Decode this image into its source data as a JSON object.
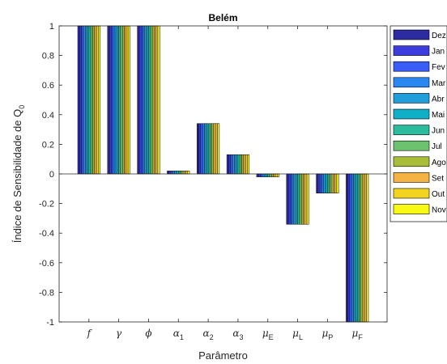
{
  "chart_data": {
    "type": "bar",
    "title": "Belém",
    "xlabel": "Parâmetro",
    "ylabel": "Índice de Sensibilidade de Q",
    "ylabel_sub": "0",
    "ylim": [
      -1,
      1
    ],
    "yticks": [
      "1",
      "0.8",
      "0.6",
      "0.4",
      "0.2",
      "0",
      "-0.2",
      "-0.4",
      "-0.6",
      "-0.8",
      "-1"
    ],
    "grid": false,
    "legend_position": "outside-right",
    "categories": [
      {
        "base": "f",
        "sub": ""
      },
      {
        "base": "γ",
        "sub": ""
      },
      {
        "base": "ϕ",
        "sub": ""
      },
      {
        "base": "α",
        "sub": "1"
      },
      {
        "base": "α",
        "sub": "2"
      },
      {
        "base": "α",
        "sub": "3"
      },
      {
        "base": "μ",
        "sub": "E"
      },
      {
        "base": "μ",
        "sub": "L"
      },
      {
        "base": "μ",
        "sub": "P"
      },
      {
        "base": "μ",
        "sub": "F"
      }
    ],
    "series": [
      {
        "name": "Dez",
        "color": "#2c2ca0",
        "values": [
          1,
          1,
          1,
          0.02,
          0.34,
          0.13,
          -0.02,
          -0.34,
          -0.13,
          -1
        ]
      },
      {
        "name": "Jan",
        "color": "#3d3ddf",
        "values": [
          1,
          1,
          1,
          0.02,
          0.34,
          0.13,
          -0.02,
          -0.34,
          -0.13,
          -1
        ]
      },
      {
        "name": "Fev",
        "color": "#3a5cf7",
        "values": [
          1,
          1,
          1,
          0.02,
          0.34,
          0.13,
          -0.02,
          -0.34,
          -0.13,
          -1
        ]
      },
      {
        "name": "Mar",
        "color": "#2b88f0",
        "values": [
          1,
          1,
          1,
          0.02,
          0.34,
          0.13,
          -0.02,
          -0.34,
          -0.13,
          -1
        ]
      },
      {
        "name": "Abr",
        "color": "#1f9edb",
        "values": [
          1,
          1,
          1,
          0.02,
          0.34,
          0.13,
          -0.02,
          -0.34,
          -0.13,
          -1
        ]
      },
      {
        "name": "Mai",
        "color": "#0db0c6",
        "values": [
          1,
          1,
          1,
          0.02,
          0.34,
          0.13,
          -0.02,
          -0.34,
          -0.13,
          -1
        ]
      },
      {
        "name": "Jun",
        "color": "#2bbc9e",
        "values": [
          1,
          1,
          1,
          0.02,
          0.34,
          0.13,
          -0.02,
          -0.34,
          -0.13,
          -1
        ]
      },
      {
        "name": "Jul",
        "color": "#6cc26e",
        "values": [
          1,
          1,
          1,
          0.02,
          0.34,
          0.13,
          -0.02,
          -0.34,
          -0.13,
          -1
        ]
      },
      {
        "name": "Ago",
        "color": "#a9bd38",
        "values": [
          1,
          1,
          1,
          0.02,
          0.34,
          0.13,
          -0.02,
          -0.34,
          -0.13,
          -1
        ]
      },
      {
        "name": "Set",
        "color": "#f4b342",
        "values": [
          1,
          1,
          1,
          0.02,
          0.34,
          0.13,
          -0.02,
          -0.34,
          -0.13,
          -1
        ]
      },
      {
        "name": "Out",
        "color": "#f2d320",
        "values": [
          1,
          1,
          1,
          0.02,
          0.34,
          0.13,
          -0.02,
          -0.34,
          -0.13,
          -1
        ]
      },
      {
        "name": "Nov",
        "color": "#f8fa13",
        "values": [
          1,
          1,
          1,
          0.02,
          0.34,
          0.13,
          -0.02,
          -0.34,
          -0.13,
          -1
        ]
      }
    ]
  }
}
